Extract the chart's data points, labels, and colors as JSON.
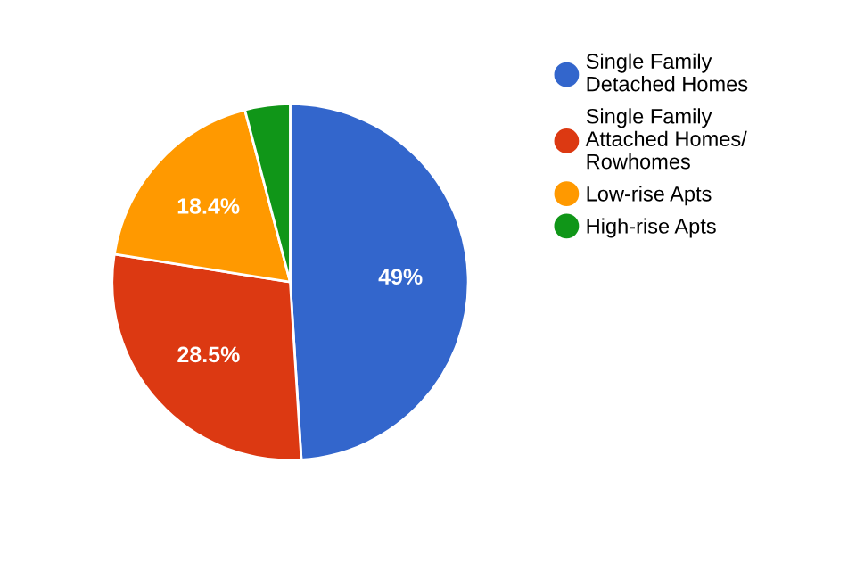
{
  "chart_data": {
    "type": "pie",
    "categories": [
      "Single Family\nDetached Homes",
      "Single Family\nAttached Homes/\nRowhomes",
      "Low-rise Apts",
      "High-rise Apts"
    ],
    "values": [
      49,
      28.5,
      18.4,
      4.1
    ],
    "colors": [
      "#3366cc",
      "#dc3912",
      "#ff9900",
      "#109618"
    ],
    "value_labels": [
      "49%",
      "28.5%",
      "18.4%",
      null
    ],
    "legend": "right"
  }
}
